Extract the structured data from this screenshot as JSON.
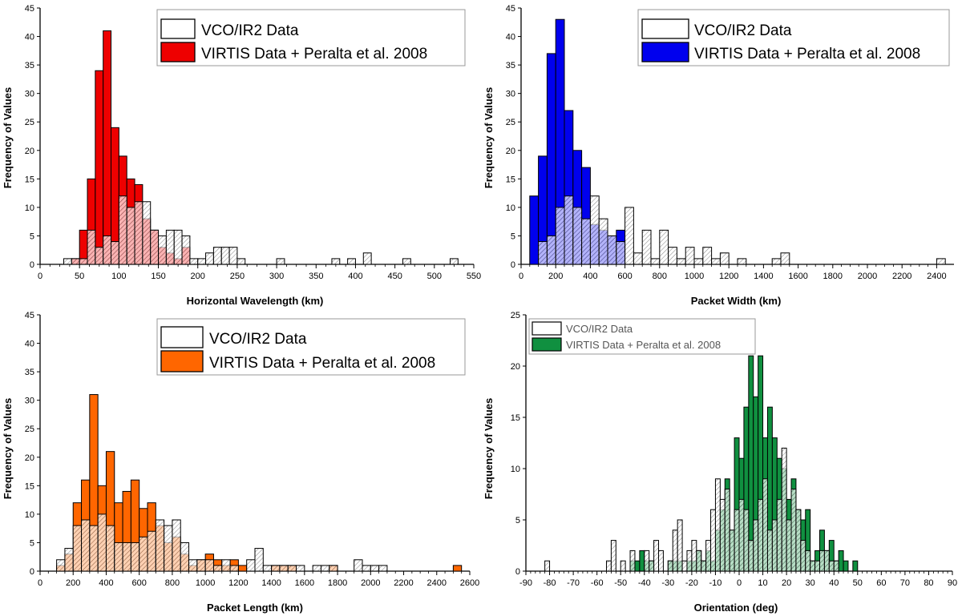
{
  "chart_data": [
    {
      "type": "bar",
      "id": "hw",
      "xlabel": "Horizontal Wavelength (km)",
      "ylabel": "Frequency of Values",
      "xlim": [
        0,
        550
      ],
      "ylim": [
        0,
        45
      ],
      "xticks": [
        0,
        50,
        100,
        150,
        200,
        250,
        300,
        350,
        400,
        450,
        500,
        550
      ],
      "yticks": [
        0,
        5,
        10,
        15,
        20,
        25,
        30,
        35,
        40,
        45
      ],
      "bin_width": 10,
      "legend": [
        {
          "label": "VCO/IR2 Data",
          "color": "#ffffff"
        },
        {
          "label": "VIRTIS Data + Peralta et al. 2008",
          "color": "#ee0000"
        }
      ],
      "series": [
        {
          "name": "VIRTIS Data + Peralta et al. 2008",
          "color": "#ee0000",
          "x": [
            40,
            50,
            60,
            70,
            80,
            90,
            100,
            110,
            120,
            130,
            140,
            150,
            160,
            170,
            180
          ],
          "values": [
            1,
            6,
            15,
            34,
            41,
            24,
            19,
            15,
            14,
            8,
            6,
            3,
            2,
            1,
            3
          ]
        },
        {
          "name": "VCO/IR2 Data",
          "color": "#ffffff",
          "x": [
            30,
            40,
            50,
            60,
            70,
            80,
            90,
            100,
            110,
            120,
            130,
            140,
            150,
            160,
            170,
            180,
            190,
            200,
            210,
            220,
            230,
            240,
            250,
            300,
            370,
            390,
            410,
            460,
            520
          ],
          "values": [
            1,
            1,
            1,
            6,
            3,
            5,
            4,
            12,
            10,
            11,
            11,
            6,
            5,
            6,
            6,
            5,
            1,
            1,
            2,
            3,
            3,
            3,
            1,
            1,
            1,
            1,
            2,
            1,
            1
          ]
        }
      ]
    },
    {
      "type": "bar",
      "id": "pw",
      "xlabel": "Packet Width (km)",
      "ylabel": "Frequency of Values",
      "xlim": [
        0,
        2500
      ],
      "ylim": [
        0,
        45
      ],
      "xticks": [
        0,
        200,
        400,
        600,
        800,
        1000,
        1200,
        1400,
        1600,
        1800,
        2000,
        2200,
        2400
      ],
      "yticks": [
        0,
        5,
        10,
        15,
        20,
        25,
        30,
        35,
        40,
        45
      ],
      "bin_width": 50,
      "legend": [
        {
          "label": "VCO/IR2 Data",
          "color": "#ffffff"
        },
        {
          "label": "VIRTIS Data + Peralta et al. 2008",
          "color": "#0000ee"
        }
      ],
      "series": [
        {
          "name": "VIRTIS Data + Peralta et al. 2008",
          "color": "#0000ee",
          "x": [
            50,
            100,
            150,
            200,
            250,
            300,
            350,
            400,
            450,
            500,
            550
          ],
          "values": [
            12,
            19,
            37,
            43,
            27,
            20,
            17,
            7,
            6,
            5,
            6
          ]
        },
        {
          "name": "VCO/IR2 Data",
          "color": "#ffffff",
          "x": [
            100,
            150,
            200,
            250,
            300,
            350,
            400,
            450,
            500,
            550,
            600,
            650,
            700,
            750,
            800,
            850,
            900,
            950,
            1000,
            1050,
            1100,
            1150,
            1250,
            1450,
            1500,
            2400
          ],
          "values": [
            4,
            5,
            10,
            12,
            10,
            8,
            12,
            8,
            5,
            4,
            10,
            2,
            6,
            1,
            6,
            3,
            1,
            3,
            1,
            3,
            1,
            2,
            1,
            1,
            2,
            1
          ]
        }
      ]
    },
    {
      "type": "bar",
      "id": "pl",
      "xlabel": "Packet Length (km)",
      "ylabel": "Frequency of Values",
      "xlim": [
        0,
        2600
      ],
      "ylim": [
        0,
        45
      ],
      "xticks": [
        0,
        200,
        400,
        600,
        800,
        1000,
        1200,
        1400,
        1600,
        1800,
        2000,
        2200,
        2400,
        2600
      ],
      "yticks": [
        0,
        5,
        10,
        15,
        20,
        25,
        30,
        35,
        40,
        45
      ],
      "bin_width": 50,
      "legend": [
        {
          "label": "VCO/IR2 Data",
          "color": "#ffffff"
        },
        {
          "label": "VIRTIS Data + Peralta et al. 2008",
          "color": "#ff6600"
        }
      ],
      "series": [
        {
          "name": "VIRTIS Data + Peralta et al. 2008",
          "color": "#ff6600",
          "x": [
            100,
            150,
            200,
            250,
            300,
            350,
            400,
            450,
            500,
            550,
            600,
            650,
            700,
            750,
            800,
            850,
            900,
            950,
            1000,
            1050,
            1100,
            1150,
            1200,
            1400,
            1450,
            1500,
            1750,
            2500
          ],
          "values": [
            1,
            3,
            12,
            16,
            31,
            15,
            21,
            12,
            14,
            16,
            11,
            12,
            8,
            5,
            6,
            3,
            1,
            2,
            3,
            2,
            1,
            2,
            1,
            1,
            1,
            1,
            1,
            1
          ]
        },
        {
          "name": "VCO/IR2 Data",
          "color": "#ffffff",
          "x": [
            100,
            150,
            200,
            250,
            300,
            350,
            400,
            450,
            500,
            550,
            600,
            650,
            700,
            750,
            800,
            850,
            900,
            950,
            1000,
            1050,
            1100,
            1150,
            1250,
            1300,
            1350,
            1400,
            1450,
            1500,
            1550,
            1650,
            1700,
            1750,
            1900,
            1950,
            2000,
            2050
          ],
          "values": [
            2,
            4,
            8,
            9,
            8,
            10,
            8,
            5,
            5,
            5,
            6,
            7,
            9,
            8,
            9,
            5,
            2,
            2,
            2,
            1,
            2,
            1,
            2,
            4,
            1,
            1,
            1,
            1,
            1,
            1,
            1,
            1,
            2,
            1,
            1,
            1
          ]
        }
      ]
    },
    {
      "type": "bar",
      "id": "or",
      "xlabel": "Orientation (deg)",
      "ylabel": "Frequency of Values",
      "xlim": [
        -90,
        90
      ],
      "ylim": [
        0,
        25
      ],
      "xticks": [
        -90,
        -80,
        -70,
        -60,
        -50,
        -40,
        -30,
        -20,
        -10,
        0,
        10,
        20,
        30,
        40,
        50,
        60,
        70,
        80,
        90
      ],
      "yticks": [
        0,
        5,
        10,
        15,
        20,
        25
      ],
      "bin_width": 2,
      "legend": [
        {
          "label": "VCO/IR2 Data",
          "color": "#ffffff"
        },
        {
          "label": "VIRTIS Data + Peralta et al. 2008",
          "color": "#109040"
        }
      ],
      "series": [
        {
          "name": "VIRTIS Data + Peralta et al. 2008",
          "color": "#109040",
          "x": [
            -46,
            -44,
            -42,
            -40,
            -38,
            -36,
            -34,
            -32,
            -30,
            -28,
            -26,
            -24,
            -22,
            -20,
            -18,
            -16,
            -14,
            -12,
            -10,
            -8,
            -6,
            -4,
            -2,
            0,
            2,
            4,
            6,
            8,
            10,
            12,
            14,
            16,
            18,
            20,
            22,
            24,
            26,
            28,
            30,
            32,
            34,
            36,
            38,
            40,
            42,
            44,
            46,
            48
          ],
          "values": [
            1,
            1,
            2,
            1,
            1,
            0,
            0,
            0,
            1,
            1,
            1,
            0,
            1,
            1,
            2,
            1,
            2,
            1,
            4,
            6,
            9,
            4,
            13,
            11,
            16,
            21,
            17,
            21,
            13,
            16,
            13,
            11,
            10,
            7,
            9,
            6,
            5,
            6,
            1,
            2,
            4,
            2,
            3,
            1,
            2,
            1,
            0,
            1
          ]
        },
        {
          "name": "VCO/IR2 Data",
          "color": "#ffffff",
          "x": [
            -82,
            -56,
            -54,
            -50,
            -46,
            -40,
            -38,
            -36,
            -34,
            -30,
            -28,
            -26,
            -24,
            -22,
            -20,
            -18,
            -16,
            -14,
            -12,
            -10,
            -8,
            -6,
            -4,
            -2,
            0,
            2,
            4,
            6,
            8,
            10,
            12,
            14,
            16,
            18,
            20,
            22,
            24,
            26,
            28,
            30,
            32,
            34,
            36,
            38,
            40
          ],
          "values": [
            1,
            1,
            3,
            1,
            2,
            2,
            1,
            3,
            2,
            1,
            4,
            5,
            1,
            2,
            3,
            2,
            1,
            3,
            6,
            9,
            7,
            8,
            4,
            6,
            7,
            6,
            3,
            5,
            7,
            9,
            4,
            5,
            7,
            12,
            5,
            8,
            6,
            3,
            2,
            1,
            1,
            2,
            2,
            1,
            1
          ]
        }
      ]
    }
  ]
}
